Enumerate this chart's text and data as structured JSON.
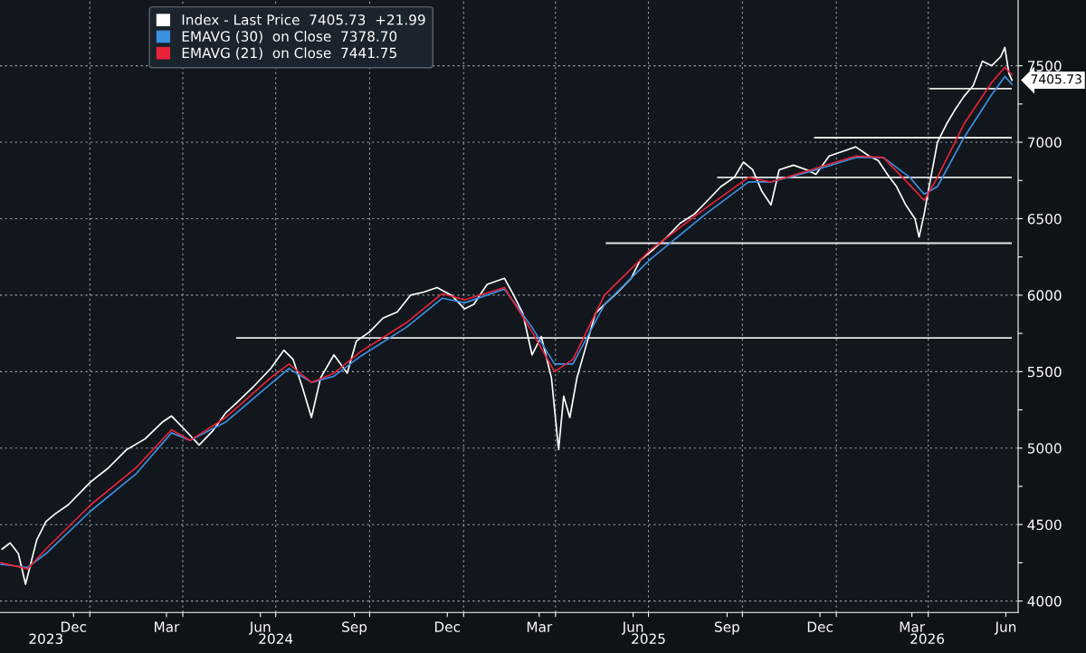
{
  "chart_data": {
    "type": "line",
    "series": [
      {
        "name": "Index - Last Price  7405.73  +21.99",
        "color": "#ffffff",
        "x": [
          "2023-10-07",
          "2023-10-15",
          "2023-10-23",
          "2023-10-30",
          "2023-11-10",
          "2023-11-19",
          "2023-11-28",
          "2023-12-11",
          "2023-12-24",
          "2024-01-02",
          "2024-01-19",
          "2024-02-06",
          "2024-02-24",
          "2024-03-12",
          "2024-03-21",
          "2024-04-03",
          "2024-04-17",
          "2024-04-30",
          "2024-05-13",
          "2024-05-26",
          "2024-06-09",
          "2024-06-26",
          "2024-07-09",
          "2024-07-18",
          "2024-07-27",
          "2024-08-05",
          "2024-08-14",
          "2024-08-27",
          "2024-09-09",
          "2024-09-18",
          "2024-10-01",
          "2024-10-14",
          "2024-10-28",
          "2024-11-10",
          "2024-11-23",
          "2024-12-06",
          "2024-12-20",
          "2025-01-02",
          "2025-01-11",
          "2025-01-24",
          "2025-02-10",
          "2025-02-19",
          "2025-02-28",
          "2025-03-09",
          "2025-03-18",
          "2025-03-28",
          "2025-04-04",
          "2025-04-09",
          "2025-04-15",
          "2025-04-22",
          "2025-05-01",
          "2025-05-10",
          "2025-05-19",
          "2025-06-01",
          "2025-06-14",
          "2025-06-23",
          "2025-07-06",
          "2025-07-19",
          "2025-08-01",
          "2025-08-15",
          "2025-08-28",
          "2025-09-10",
          "2025-09-23",
          "2025-10-02",
          "2025-10-11",
          "2025-10-20",
          "2025-10-29",
          "2025-11-06",
          "2025-11-20",
          "2025-12-03",
          "2025-12-12",
          "2025-12-25",
          "2026-01-07",
          "2026-01-20",
          "2026-02-02",
          "2026-02-11",
          "2026-02-20",
          "2026-03-01",
          "2026-03-10",
          "2026-03-19",
          "2026-03-23",
          "2026-03-28",
          "2026-04-01",
          "2026-04-05",
          "2026-04-10",
          "2026-04-19",
          "2026-04-27",
          "2026-05-06",
          "2026-05-15",
          "2026-05-24",
          "2026-06-02",
          "2026-06-11",
          "2026-06-15",
          "2026-06-19",
          "2026-06-22"
        ],
        "values": [
          4340,
          4380,
          4310,
          4110,
          4400,
          4520,
          4570,
          4630,
          4720,
          4780,
          4870,
          4990,
          5060,
          5170,
          5210,
          5120,
          5020,
          5110,
          5230,
          5310,
          5400,
          5520,
          5640,
          5580,
          5400,
          5200,
          5460,
          5610,
          5490,
          5700,
          5760,
          5850,
          5890,
          6000,
          6020,
          6050,
          6000,
          5910,
          5940,
          6070,
          6110,
          6000,
          5880,
          5610,
          5730,
          5460,
          4990,
          5340,
          5200,
          5460,
          5670,
          5880,
          5940,
          6020,
          6110,
          6230,
          6300,
          6380,
          6470,
          6530,
          6620,
          6710,
          6770,
          6870,
          6820,
          6680,
          6590,
          6820,
          6850,
          6820,
          6790,
          6910,
          6940,
          6970,
          6910,
          6880,
          6790,
          6710,
          6590,
          6500,
          6380,
          6530,
          6680,
          6820,
          7000,
          7120,
          7210,
          7300,
          7370,
          7530,
          7500,
          7560,
          7620,
          7450,
          7405.73
        ]
      },
      {
        "name": "EMAVG (30)  on Close  7378.70",
        "color": "#3d8fe0",
        "x": [
          "2023-10-06",
          "2023-11-01",
          "2023-11-19",
          "2024-01-02",
          "2024-02-15",
          "2024-03-21",
          "2024-04-08",
          "2024-05-13",
          "2024-06-26",
          "2024-07-14",
          "2024-08-05",
          "2024-08-27",
          "2024-09-22",
          "2024-11-06",
          "2024-12-11",
          "2025-01-02",
          "2025-02-10",
          "2025-03-09",
          "2025-03-31",
          "2025-04-18",
          "2025-05-19",
          "2025-07-02",
          "2025-08-24",
          "2025-10-07",
          "2025-10-29",
          "2025-12-07",
          "2026-01-20",
          "2026-02-16",
          "2026-03-14",
          "2026-03-28",
          "2026-04-10",
          "2026-05-06",
          "2026-06-02",
          "2026-06-15",
          "2026-06-22"
        ],
        "values": [
          4240,
          4220,
          4310,
          4590,
          4830,
          5100,
          5050,
          5170,
          5420,
          5520,
          5430,
          5470,
          5600,
          5790,
          5980,
          5950,
          6040,
          5790,
          5550,
          5550,
          5940,
          6230,
          6520,
          6740,
          6740,
          6810,
          6900,
          6900,
          6770,
          6660,
          6710,
          7030,
          7310,
          7430,
          7378.7
        ]
      },
      {
        "name": "EMAVG (21)  on Close  7441.75",
        "color": "#e8233a",
        "x": [
          "2023-10-06",
          "2023-11-01",
          "2023-11-19",
          "2024-01-02",
          "2024-02-15",
          "2024-03-21",
          "2024-04-08",
          "2024-05-13",
          "2024-06-26",
          "2024-07-14",
          "2024-08-05",
          "2024-08-27",
          "2024-09-22",
          "2024-11-06",
          "2024-12-11",
          "2025-01-02",
          "2025-02-10",
          "2025-03-09",
          "2025-03-31",
          "2025-04-18",
          "2025-05-19",
          "2025-07-02",
          "2025-08-24",
          "2025-10-07",
          "2025-10-29",
          "2025-12-07",
          "2026-01-20",
          "2026-02-16",
          "2026-03-14",
          "2026-03-28",
          "2026-04-10",
          "2026-05-06",
          "2026-06-02",
          "2026-06-15",
          "2026-06-22"
        ],
        "values": [
          4250,
          4210,
          4340,
          4630,
          4870,
          5120,
          5050,
          5200,
          5460,
          5550,
          5430,
          5490,
          5630,
          5820,
          6010,
          5970,
          6050,
          5760,
          5500,
          5580,
          6000,
          6290,
          6560,
          6770,
          6740,
          6820,
          6910,
          6900,
          6720,
          6620,
          6770,
          7120,
          7390,
          7490,
          7441.75
        ]
      },
      {
        "color": "#e6e6e6",
        "x": [
          "2024-05-24",
          "2026-06-21"
        ],
        "values": [
          5720,
          5720
        ]
      },
      {
        "color": "#e6e6e6",
        "x": [
          "2025-05-21",
          "2026-06-21"
        ],
        "values": [
          6340,
          6340
        ]
      },
      {
        "color": "#e6e6e6",
        "x": [
          "2025-09-07",
          "2026-06-21"
        ],
        "values": [
          6770,
          6770
        ]
      },
      {
        "color": "#e6e6e6",
        "x": [
          "2025-12-11",
          "2026-06-21"
        ],
        "values": [
          7030,
          7030
        ]
      },
      {
        "color": "#e6e6e6",
        "x": [
          "2026-04-03",
          "2026-06-21"
        ],
        "values": [
          7350,
          7350
        ]
      }
    ],
    "xlim": [
      "2023-10-05",
      "2026-06-28"
    ],
    "xticks": [
      {
        "value": "2024-01-01",
        "label": null
      },
      {
        "value": "2024-04-01",
        "label": null
      },
      {
        "value": "2024-07-01",
        "label": null
      },
      {
        "value": "2024-10-01",
        "label": null
      },
      {
        "value": "2025-01-01",
        "label": null
      },
      {
        "value": "2025-04-01",
        "label": null
      },
      {
        "value": "2025-07-01",
        "label": null
      },
      {
        "value": "2025-10-01",
        "label": null
      },
      {
        "value": "2026-01-01",
        "label": null
      },
      {
        "value": "2026-04-01",
        "label": null
      },
      {
        "value": "2023-12-16",
        "label": "Dec"
      },
      {
        "value": "2024-03-16",
        "label": "Mar"
      },
      {
        "value": "2024-06-16",
        "label": "Jun"
      },
      {
        "value": "2024-09-16",
        "label": "Sep"
      },
      {
        "value": "2024-12-16",
        "label": "Dec"
      },
      {
        "value": "2025-03-16",
        "label": "Mar"
      },
      {
        "value": "2025-06-16",
        "label": "Jun"
      },
      {
        "value": "2025-09-16",
        "label": "Sep"
      },
      {
        "value": "2025-12-16",
        "label": "Dec"
      },
      {
        "value": "2026-03-16",
        "label": "Mar"
      },
      {
        "value": "2026-06-16",
        "label": "Jun"
      }
    ],
    "x2lim": [
      "2023-10-05",
      "2026-06-28"
    ],
    "x2ticks": [
      {
        "value": "2023-11-19",
        "label": "2023"
      },
      {
        "value": "2024-07-01",
        "label": "2024"
      },
      {
        "value": "2025-07-01",
        "label": "2025"
      },
      {
        "value": "2026-03-31",
        "label": "2026"
      }
    ],
    "ylim": [
      3925,
      7930
    ],
    "yticks": [
      4000,
      {
        "value": 4250,
        "label": null
      },
      4500,
      {
        "value": 4750,
        "label": null
      },
      5000,
      {
        "value": 5250,
        "label": null
      },
      5500,
      {
        "value": 5750,
        "label": null
      },
      6000,
      {
        "value": 6250,
        "label": null
      },
      6500,
      {
        "value": 6750,
        "label": null
      },
      7000,
      {
        "value": 7250,
        "label": null
      },
      7500
    ],
    "annotations": [
      {
        "text": "7405.73",
        "x": "2026-06-22",
        "y": 7405.73
      }
    ],
    "grid": true,
    "legend": "top left",
    "line_style": "solid"
  }
}
